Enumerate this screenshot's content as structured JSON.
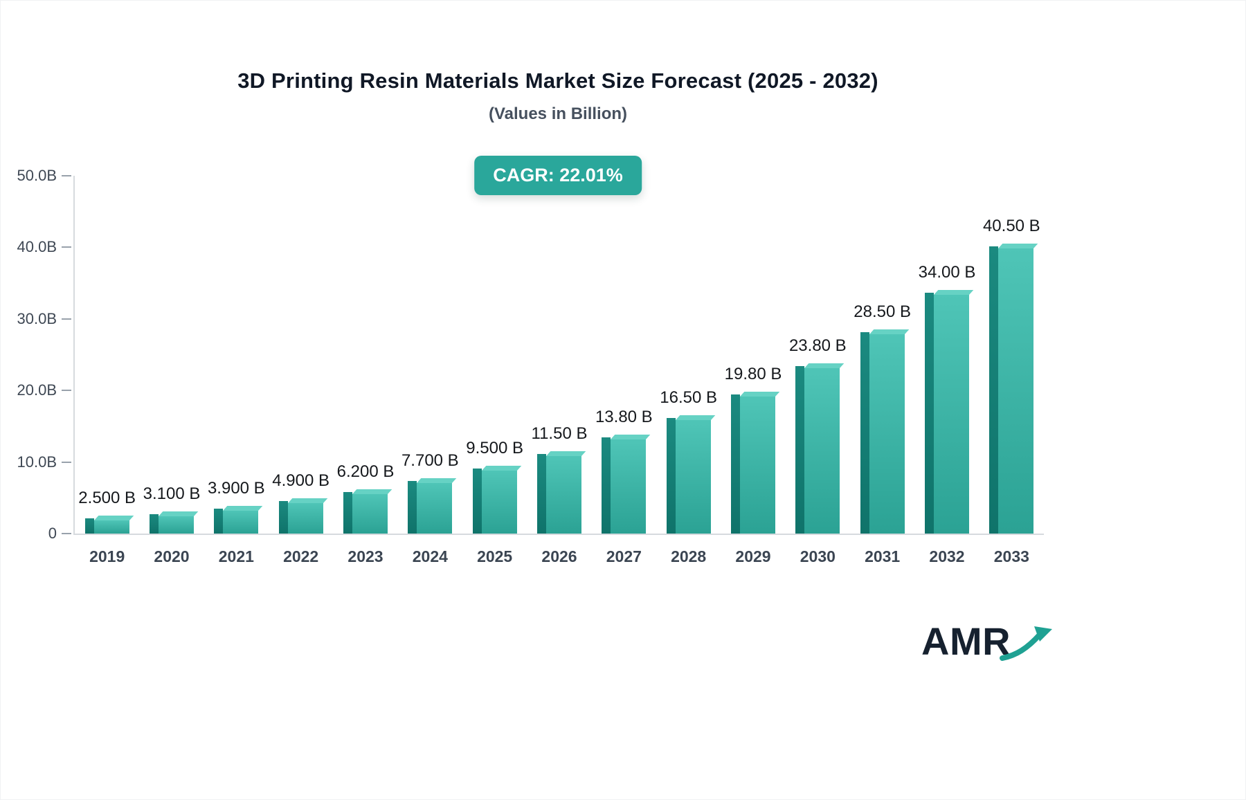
{
  "title": "3D Printing Resin Materials Market Size Forecast (2025 - 2032)",
  "subtitle": "(Values in Billion)",
  "cagr_badge": "CAGR: 22.01%",
  "logo": {
    "text": "AMR"
  },
  "colors": {
    "badge_bg": "#2aa79b",
    "bar_front_top": "#4fc5b7",
    "bar_front_bottom": "#2ba294",
    "bar_side": "#0f736a",
    "bar_cap": "#66d2c4",
    "axis_line": "#d6dade",
    "title_color": "#101826",
    "axis_text": "#3f4854",
    "logo_color": "#16212f",
    "logo_arrow": "#1fa193"
  },
  "chart_data": {
    "type": "bar",
    "title": "3D Printing Resin Materials Market Size Forecast (2025 - 2032)",
    "subtitle": "(Values in Billion)",
    "xlabel": "",
    "ylabel": "",
    "ylim": [
      0,
      50
    ],
    "grid": false,
    "legend": false,
    "categories": [
      "2019",
      "2020",
      "2021",
      "2022",
      "2023",
      "2024",
      "2025",
      "2026",
      "2027",
      "2028",
      "2029",
      "2030",
      "2031",
      "2032",
      "2033"
    ],
    "values": [
      2.5,
      3.1,
      3.9,
      4.9,
      6.2,
      7.7,
      9.5,
      11.5,
      13.8,
      16.5,
      19.8,
      23.8,
      28.5,
      34.0,
      40.5
    ],
    "value_labels": [
      "2.500 B",
      "3.100 B",
      "3.900 B",
      "4.900 B",
      "6.200 B",
      "7.700 B",
      "9.500 B",
      "11.50 B",
      "13.80 B",
      "16.50 B",
      "19.80 B",
      "23.80 B",
      "28.50 B",
      "34.00 B",
      "40.50 B"
    ],
    "yticks": [
      {
        "value": 0,
        "label": "0"
      },
      {
        "value": 10,
        "label": "10.0B"
      },
      {
        "value": 20,
        "label": "20.0B"
      },
      {
        "value": 30,
        "label": "30.0B"
      },
      {
        "value": 40,
        "label": "40.0B"
      },
      {
        "value": 50,
        "label": "50.0B"
      }
    ]
  }
}
